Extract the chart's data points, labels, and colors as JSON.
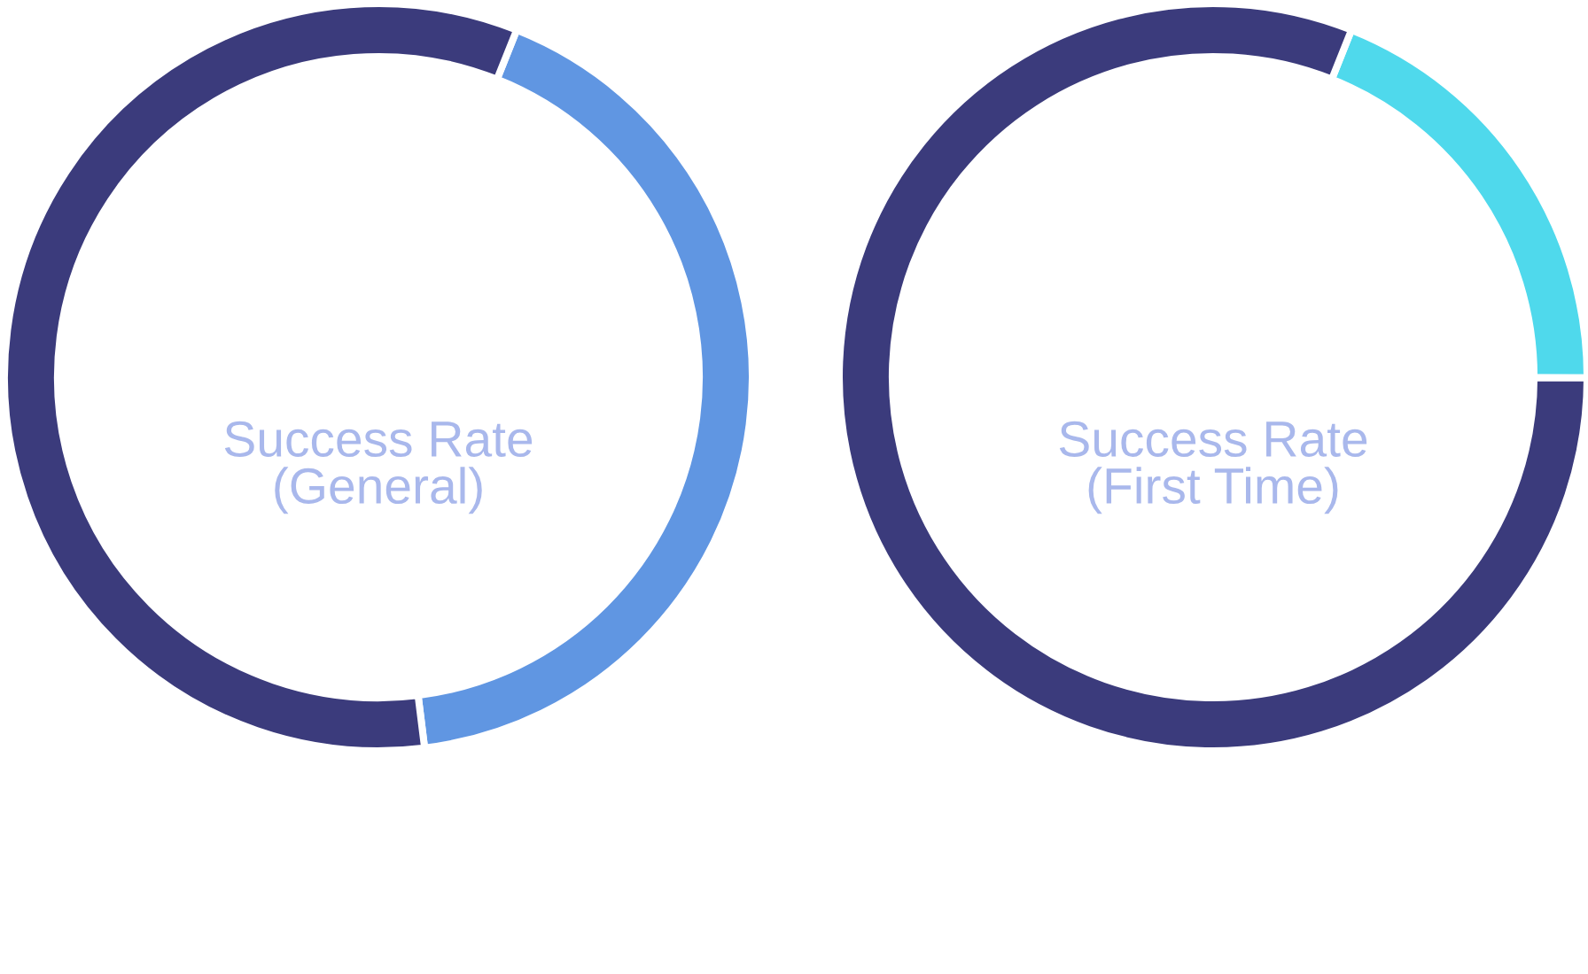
{
  "chart_data": [
    {
      "type": "donut",
      "title": "Success Rate\n(General)",
      "categories": [
        null,
        null
      ],
      "values": [
        42,
        58
      ],
      "colors": [
        "#6096e2",
        "#3b3b7c"
      ]
    },
    {
      "type": "donut",
      "title": "Success Rate\n(First Time)",
      "categories": [
        null,
        null
      ],
      "values": [
        19,
        81
      ],
      "colors": [
        "#4fd9ec",
        "#3b3b7c"
      ]
    }
  ]
}
